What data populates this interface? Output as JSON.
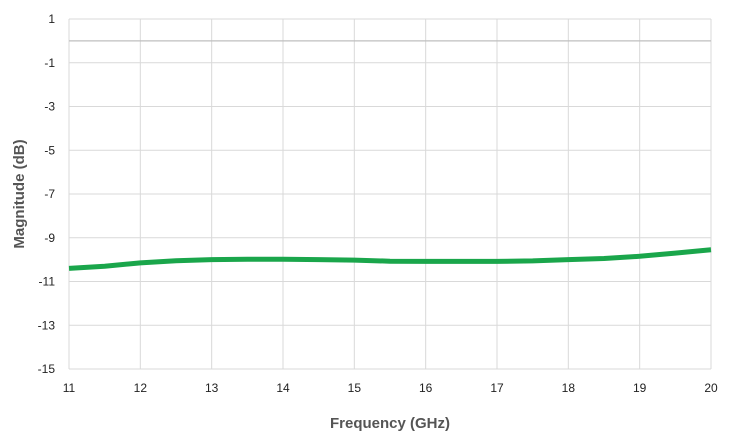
{
  "chart_data": {
    "type": "line",
    "title": "",
    "xlabel": "Frequency (GHz)",
    "ylabel": "Magnitude (dB)",
    "xlim": [
      11,
      20
    ],
    "ylim": [
      -15,
      1
    ],
    "x_ticks": [
      11,
      12,
      13,
      14,
      15,
      16,
      17,
      18,
      19,
      20
    ],
    "y_ticks": [
      1,
      -1,
      -3,
      -5,
      -7,
      -9,
      -11,
      -13,
      -15
    ],
    "grid": true,
    "legend": "none",
    "series": [
      {
        "color": "#1aa64b",
        "x": [
          11.0,
          11.5,
          12.0,
          12.5,
          13.0,
          13.5,
          14.0,
          14.5,
          15.0,
          15.5,
          16.0,
          16.5,
          17.0,
          17.5,
          18.0,
          18.5,
          19.0,
          19.5,
          20.0
        ],
        "y": [
          -10.4,
          -10.3,
          -10.15,
          -10.05,
          -10.0,
          -9.98,
          -9.98,
          -10.0,
          -10.02,
          -10.07,
          -10.08,
          -10.08,
          -10.08,
          -10.06,
          -10.0,
          -9.95,
          -9.85,
          -9.7,
          -9.55
        ]
      }
    ]
  }
}
